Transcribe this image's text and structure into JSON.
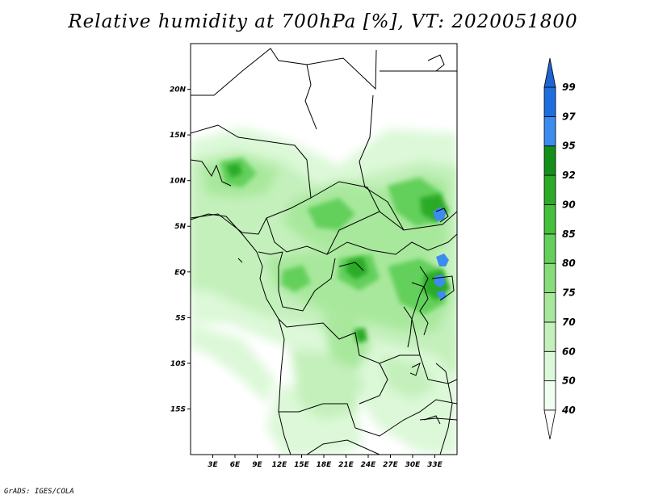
{
  "title": "Relative humidity at 700hPa [%], VT: 2020051800",
  "credit": "GrADS: IGES/COLA",
  "map": {
    "lon_range": [
      0,
      36
    ],
    "lat_range": [
      -20,
      25
    ],
    "lat_ticks": [
      {
        "value": 20,
        "label": "20N"
      },
      {
        "value": 15,
        "label": "15N"
      },
      {
        "value": 10,
        "label": "10N"
      },
      {
        "value": 5,
        "label": "5N"
      },
      {
        "value": 0,
        "label": "EQ"
      },
      {
        "value": -5,
        "label": "5S"
      },
      {
        "value": -10,
        "label": "10S"
      },
      {
        "value": -15,
        "label": "15S"
      }
    ],
    "lon_ticks": [
      {
        "value": 3,
        "label": "3E"
      },
      {
        "value": 6,
        "label": "6E"
      },
      {
        "value": 9,
        "label": "9E"
      },
      {
        "value": 12,
        "label": "12E"
      },
      {
        "value": 15,
        "label": "15E"
      },
      {
        "value": 18,
        "label": "18E"
      },
      {
        "value": 21,
        "label": "21E"
      },
      {
        "value": 24,
        "label": "24E"
      },
      {
        "value": 27,
        "label": "27E"
      },
      {
        "value": 30,
        "label": "30E"
      },
      {
        "value": 33,
        "label": "33E"
      }
    ]
  },
  "colorbar": {
    "levels": [
      {
        "label": "40",
        "color": "#f0fff0"
      },
      {
        "label": "50",
        "color": "#dcf8d8"
      },
      {
        "label": "60",
        "color": "#c4f0bc"
      },
      {
        "label": "70",
        "color": "#a8e89c"
      },
      {
        "label": "75",
        "color": "#88dc7c"
      },
      {
        "label": "80",
        "color": "#64d05c"
      },
      {
        "label": "85",
        "color": "#44c03c"
      },
      {
        "label": "90",
        "color": "#2caa28"
      },
      {
        "label": "92",
        "color": "#14901a"
      },
      {
        "label": "95",
        "color": "#3c8cf0"
      },
      {
        "label": "97",
        "color": "#1e6ee0"
      },
      {
        "label": "99",
        "color": ""
      }
    ],
    "low_color": "#ffffff",
    "high_color": "#1e64d2"
  }
}
